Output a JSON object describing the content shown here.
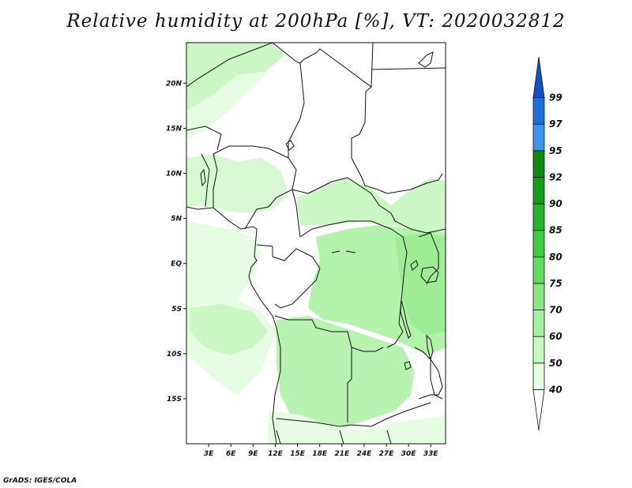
{
  "title": "Relative humidity at 200hPa [%], VT: 2020032812",
  "credit": "GrADS: IGES/COLA",
  "map": {
    "lat_labels": [
      "20N",
      "15N",
      "10N",
      "5N",
      "EQ",
      "5S",
      "10S",
      "15S"
    ],
    "lat_values": [
      20,
      15,
      10,
      5,
      0,
      -5,
      -10,
      -15
    ],
    "lon_labels": [
      "3E",
      "6E",
      "9E",
      "12E",
      "15E",
      "18E",
      "21E",
      "24E",
      "27E",
      "30E",
      "33E"
    ],
    "lon_values": [
      3,
      6,
      9,
      12,
      15,
      18,
      21,
      24,
      27,
      30,
      33
    ],
    "lon_range": [
      0,
      35
    ],
    "lat_range": [
      -20,
      24.5
    ]
  },
  "colorbar": {
    "labels": [
      "40",
      "50",
      "60",
      "70",
      "75",
      "80",
      "85",
      "90",
      "92",
      "95",
      "97",
      "99"
    ],
    "colors": [
      "#ffffff",
      "#e6fde3",
      "#c9f7c4",
      "#a7f09f",
      "#86e77e",
      "#5fdd5a",
      "#3fcc3d",
      "#26b526",
      "#139d17",
      "#0d8a10",
      "#3a96ec",
      "#1d6fdc",
      "#1250c4"
    ]
  }
}
